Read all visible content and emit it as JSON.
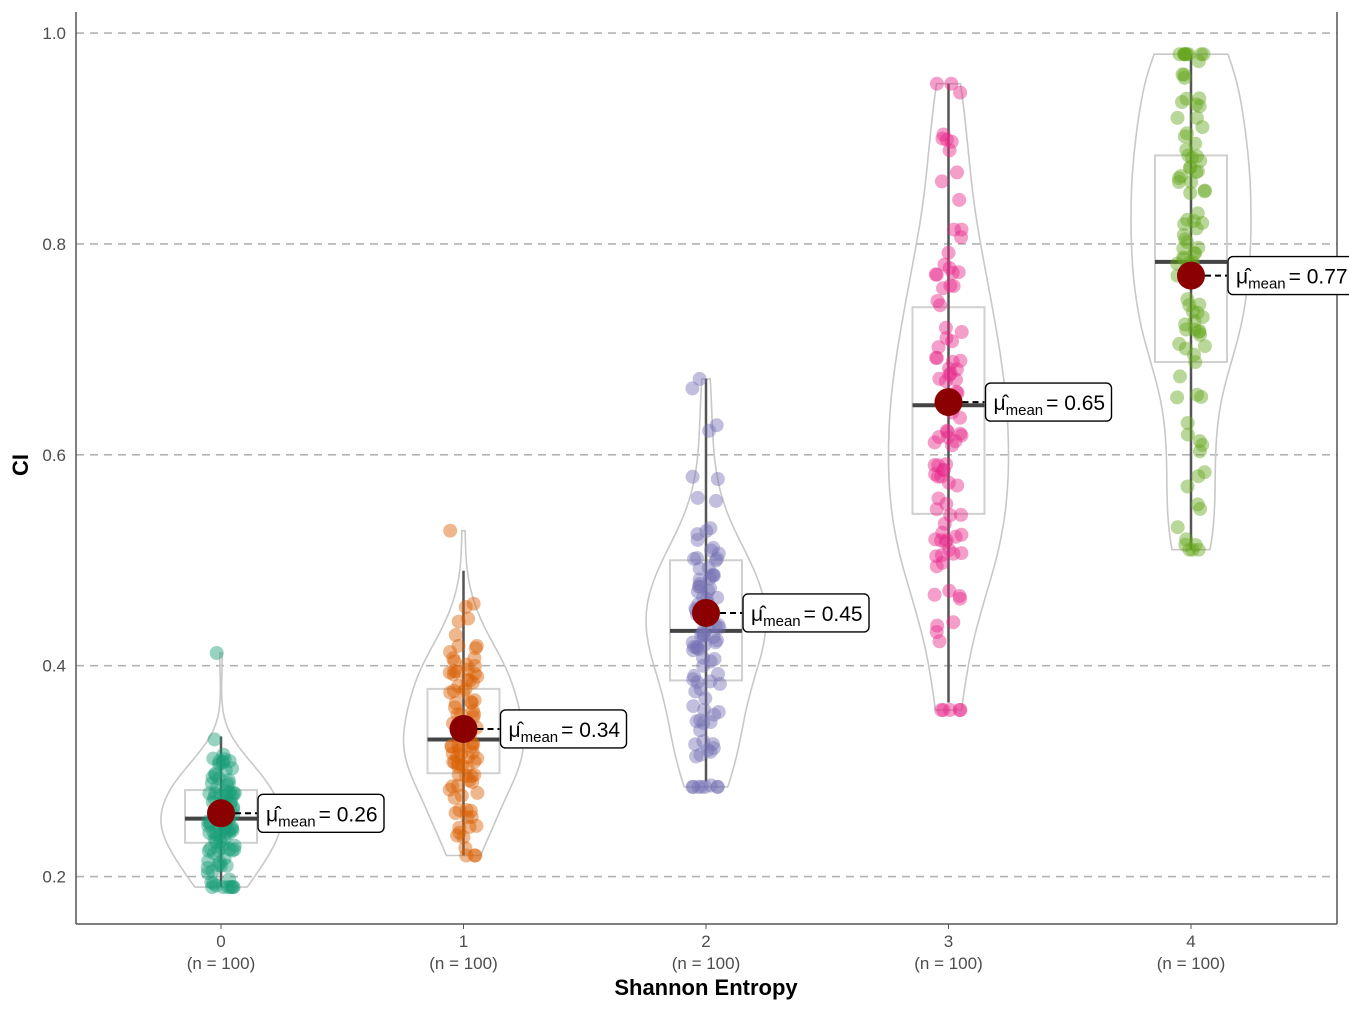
{
  "chart_data": {
    "type": "scatter",
    "subtype": "violin-box-jitter",
    "xlabel": "Shannon Entropy",
    "ylabel": "CI",
    "ylim": [
      0.155,
      1.02
    ],
    "y_ticks": [
      0.2,
      0.4,
      0.6,
      0.8,
      1.0
    ],
    "y_tick_labels": [
      "0.2",
      "0.4",
      "0.6",
      "0.8",
      "1.0"
    ],
    "grid": "horizontal dashed",
    "categories": [
      "0",
      "1",
      "2",
      "3",
      "4"
    ],
    "category_counts": [
      "(n = 100)",
      "(n = 100)",
      "(n = 100)",
      "(n = 100)",
      "(n = 100)"
    ],
    "series": [
      {
        "category": "0",
        "color": "#1b9e77",
        "n": 100,
        "mean": 0.26,
        "mean_label": "= 0.26",
        "median": 0.255,
        "q1": 0.232,
        "q3": 0.282,
        "whisker_low": 0.19,
        "whisker_high": 0.333,
        "min": 0.19,
        "max": 0.412
      },
      {
        "category": "1",
        "color": "#d95f02",
        "n": 100,
        "mean": 0.34,
        "mean_label": "= 0.34",
        "median": 0.33,
        "q1": 0.298,
        "q3": 0.378,
        "whisker_low": 0.22,
        "whisker_high": 0.49,
        "min": 0.22,
        "max": 0.528
      },
      {
        "category": "2",
        "color": "#7570b3",
        "n": 100,
        "mean": 0.45,
        "mean_label": "= 0.45",
        "median": 0.433,
        "q1": 0.386,
        "q3": 0.5,
        "whisker_low": 0.29,
        "whisker_high": 0.672,
        "min": 0.285,
        "max": 0.672
      },
      {
        "category": "3",
        "color": "#e7298a",
        "n": 100,
        "mean": 0.65,
        "mean_label": "= 0.65",
        "median": 0.647,
        "q1": 0.544,
        "q3": 0.74,
        "whisker_low": 0.365,
        "whisker_high": 0.952,
        "min": 0.358,
        "max": 0.952
      },
      {
        "category": "4",
        "color": "#66a61e",
        "n": 100,
        "mean": 0.77,
        "mean_label": "= 0.77",
        "median": 0.783,
        "q1": 0.688,
        "q3": 0.884,
        "whisker_low": 0.51,
        "whisker_high": 0.98,
        "min": 0.51,
        "max": 0.98
      }
    ],
    "mean_color": "#8b0000",
    "annotation_prefix_symbol": "μ̂",
    "annotation_subscript": "mean"
  }
}
